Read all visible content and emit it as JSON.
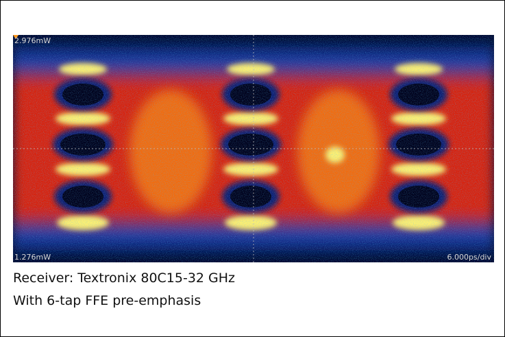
{
  "scope": {
    "top_label": "2.976mW",
    "bottom_label": "1.276mW",
    "timebase": "6.000ps/div"
  },
  "caption": {
    "lines": [
      "Receiver: Textronix 80C15-32 GHz",
      "With 6-tap FFE pre-emphasis"
    ]
  }
}
